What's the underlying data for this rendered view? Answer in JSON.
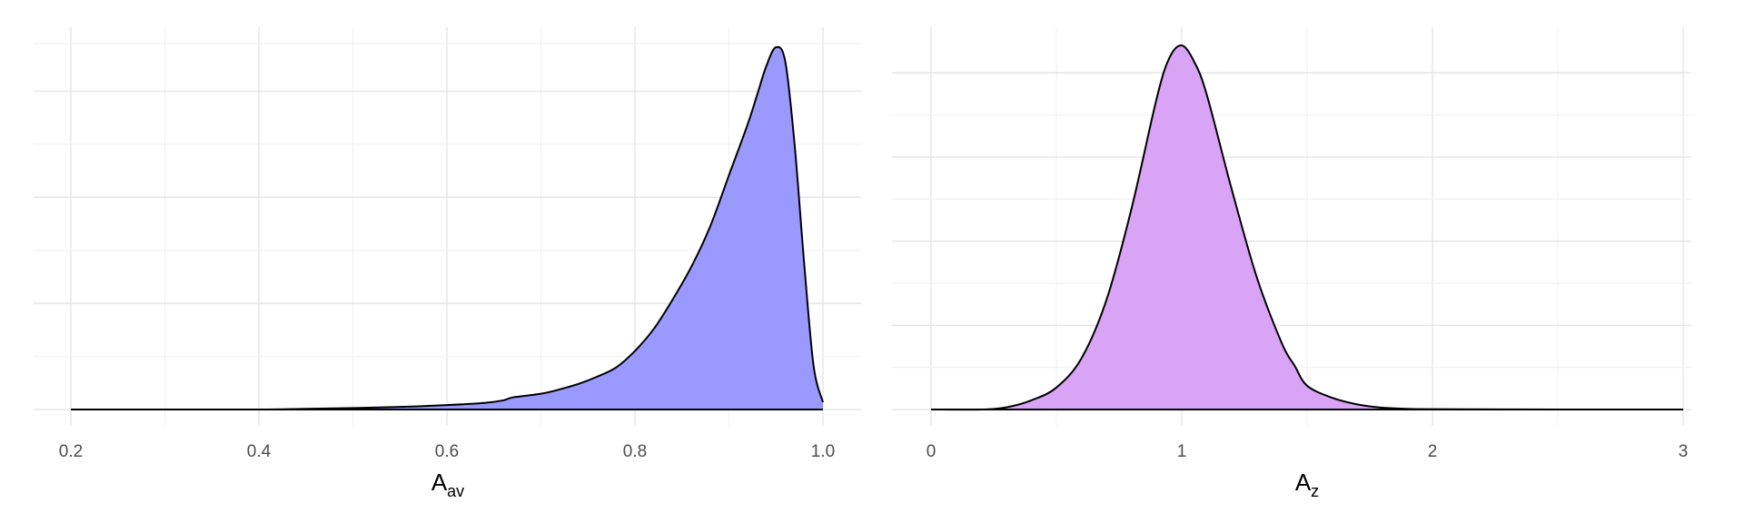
{
  "chart_data": [
    {
      "type": "area",
      "fill_color": "#9999ff",
      "xlabel": {
        "main": "A",
        "sub": "av"
      },
      "xlim": [
        0.2,
        1.0
      ],
      "ylim": [
        0,
        1
      ],
      "x_ticks": [
        0.2,
        0.4,
        0.6,
        0.8,
        1.0
      ],
      "x_tick_labels": [
        "0.2",
        "0.4",
        "0.6",
        "0.8",
        "1.0"
      ],
      "y_ticks_major": [
        0,
        0.29,
        0.58,
        0.87
      ],
      "y_ticks_minor": [
        0.145,
        0.435,
        0.725,
        1.0
      ],
      "grid": true,
      "x": [
        0.2,
        0.3,
        0.4,
        0.45,
        0.5,
        0.55,
        0.6,
        0.64,
        0.66,
        0.67,
        0.7,
        0.72,
        0.74,
        0.76,
        0.78,
        0.8,
        0.82,
        0.84,
        0.86,
        0.88,
        0.9,
        0.92,
        0.93,
        0.94,
        0.95,
        0.96,
        0.97,
        0.98,
        0.99,
        1.0
      ],
      "y": [
        0.0,
        0.0,
        0.0,
        0.002,
        0.004,
        0.007,
        0.012,
        0.018,
        0.025,
        0.033,
        0.043,
        0.055,
        0.07,
        0.09,
        0.115,
        0.16,
        0.22,
        0.3,
        0.39,
        0.5,
        0.64,
        0.78,
        0.86,
        0.94,
        0.99,
        0.95,
        0.72,
        0.4,
        0.12,
        0.02
      ]
    },
    {
      "type": "area",
      "fill_color": "#d9a4f6",
      "xlabel": {
        "main": "A",
        "sub": "z"
      },
      "xlim": [
        0,
        3
      ],
      "ylim": [
        0,
        1
      ],
      "x_ticks": [
        0,
        1,
        2,
        3
      ],
      "x_tick_labels": [
        "0",
        "1",
        "2",
        "3"
      ],
      "y_ticks_major": [
        0,
        0.23,
        0.46,
        0.69,
        0.92
      ],
      "y_ticks_minor": [
        0.115,
        0.345,
        0.575,
        0.805
      ],
      "grid": true,
      "x": [
        0.0,
        0.2,
        0.3,
        0.4,
        0.5,
        0.6,
        0.7,
        0.8,
        0.9,
        0.95,
        1.0,
        1.05,
        1.1,
        1.2,
        1.3,
        1.4,
        1.45,
        1.5,
        1.6,
        1.7,
        1.8,
        1.9,
        2.0,
        2.5,
        3.0
      ],
      "y": [
        0.0,
        0.0,
        0.006,
        0.025,
        0.06,
        0.14,
        0.3,
        0.55,
        0.85,
        0.96,
        0.995,
        0.95,
        0.86,
        0.6,
        0.36,
        0.18,
        0.12,
        0.065,
        0.032,
        0.014,
        0.005,
        0.002,
        0.001,
        0.0,
        0.0
      ]
    }
  ]
}
